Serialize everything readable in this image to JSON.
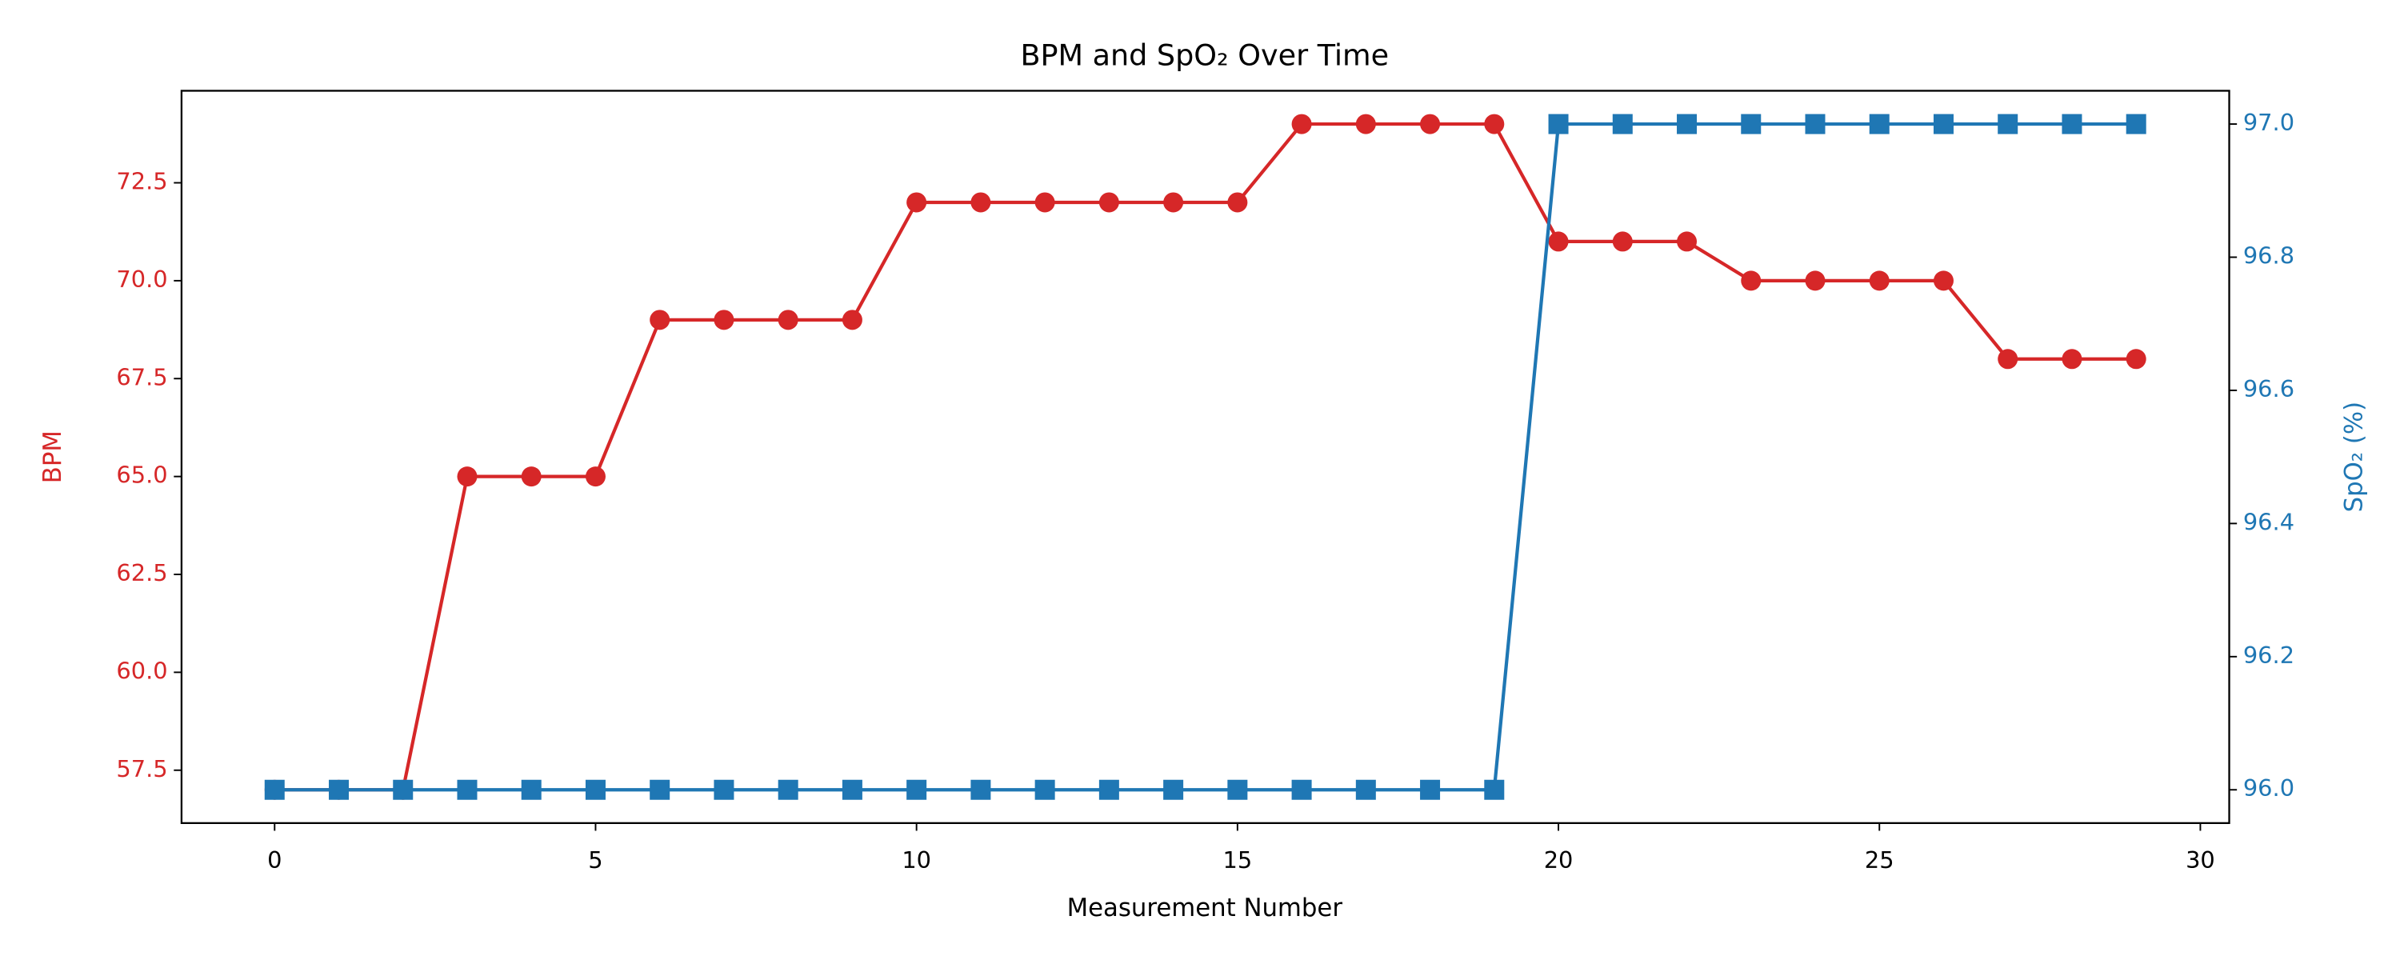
{
  "chart_data": {
    "type": "line",
    "title": "BPM and SpO₂ Over Time",
    "xlabel": "Measurement Number",
    "ylabel": "BPM",
    "y2label": "SpO₂ (%)",
    "x": [
      0,
      1,
      2,
      3,
      4,
      5,
      6,
      7,
      8,
      9,
      10,
      11,
      12,
      13,
      14,
      15,
      16,
      17,
      18,
      19,
      20,
      21,
      22,
      23,
      24,
      25,
      26,
      27,
      28,
      29
    ],
    "series": [
      {
        "color": "#d62728",
        "marker": "circle",
        "axis": "y",
        "values": [
          57,
          57,
          57,
          65,
          65,
          65,
          69,
          69,
          69,
          69,
          72,
          72,
          72,
          72,
          72,
          72,
          74,
          74,
          74,
          74,
          71,
          71,
          71,
          70,
          70,
          70,
          70,
          68,
          68,
          68
        ]
      },
      {
        "color": "#1f77b4",
        "marker": "square",
        "axis": "y2",
        "values": [
          96,
          96,
          96,
          96,
          96,
          96,
          96,
          96,
          96,
          96,
          96,
          96,
          96,
          96,
          96,
          96,
          96,
          96,
          96,
          96,
          97,
          97,
          97,
          97,
          97,
          97,
          97,
          97,
          97,
          97
        ]
      }
    ],
    "xlim": [
      -1.45,
      30.45
    ],
    "xticks": [
      0,
      5,
      10,
      15,
      20,
      25,
      30
    ],
    "ylim": [
      56.15,
      74.85
    ],
    "yticks": [
      57.5,
      {
        "value": 60,
        "label": "60.0"
      },
      62.5,
      {
        "value": 65,
        "label": "65.0"
      },
      67.5,
      {
        "value": 70,
        "label": "70.0"
      },
      72.5
    ],
    "y2lim": [
      95.95,
      97.05
    ],
    "y2ticks": [
      {
        "value": 96,
        "label": "96.0"
      },
      96.2,
      96.4,
      96.6,
      96.8,
      {
        "value": 97,
        "label": "97.0"
      }
    ],
    "grid": false
  }
}
